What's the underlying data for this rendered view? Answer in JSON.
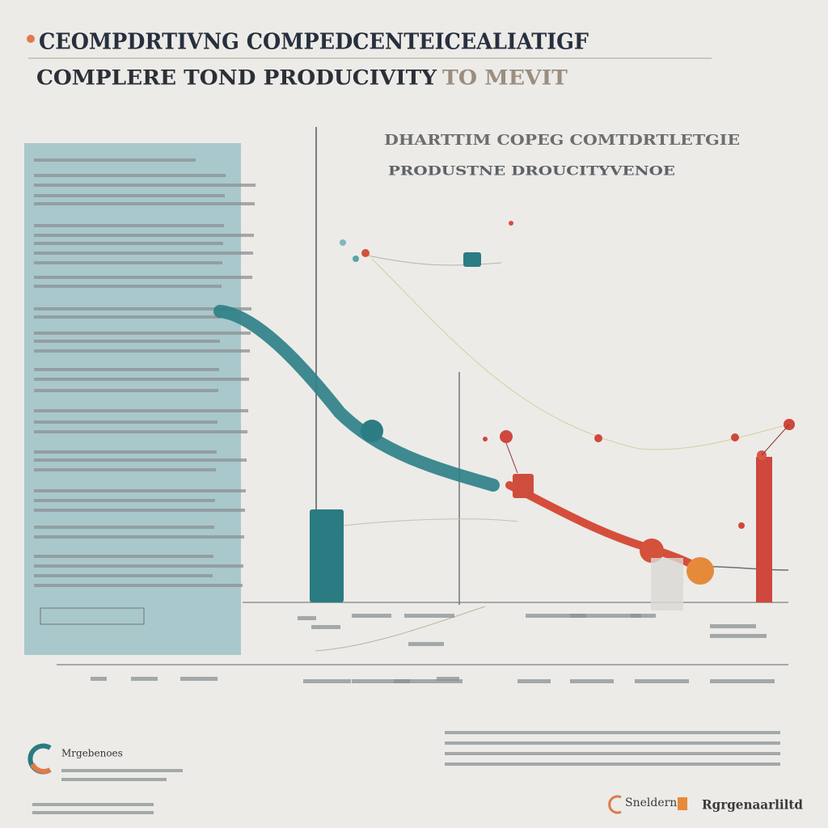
{
  "header": {
    "title": "CEOMPDRTIVNG COMPEDCENTEICEALIATIGF",
    "subtitle": "COMPLERE TOND PRODUCIVITY",
    "subtitle_tail": "TO MEVIT"
  },
  "chart": {
    "title": "DHARTTIM COPEG COMTDRTLETGIE",
    "subtitle": "PRODUSTNE DROUCITYVENOE"
  },
  "legend": {
    "label": "Mrgebenoes"
  },
  "footer": {
    "left": "Snelderng",
    "right": "Rgrgenaarliltd"
  }
}
